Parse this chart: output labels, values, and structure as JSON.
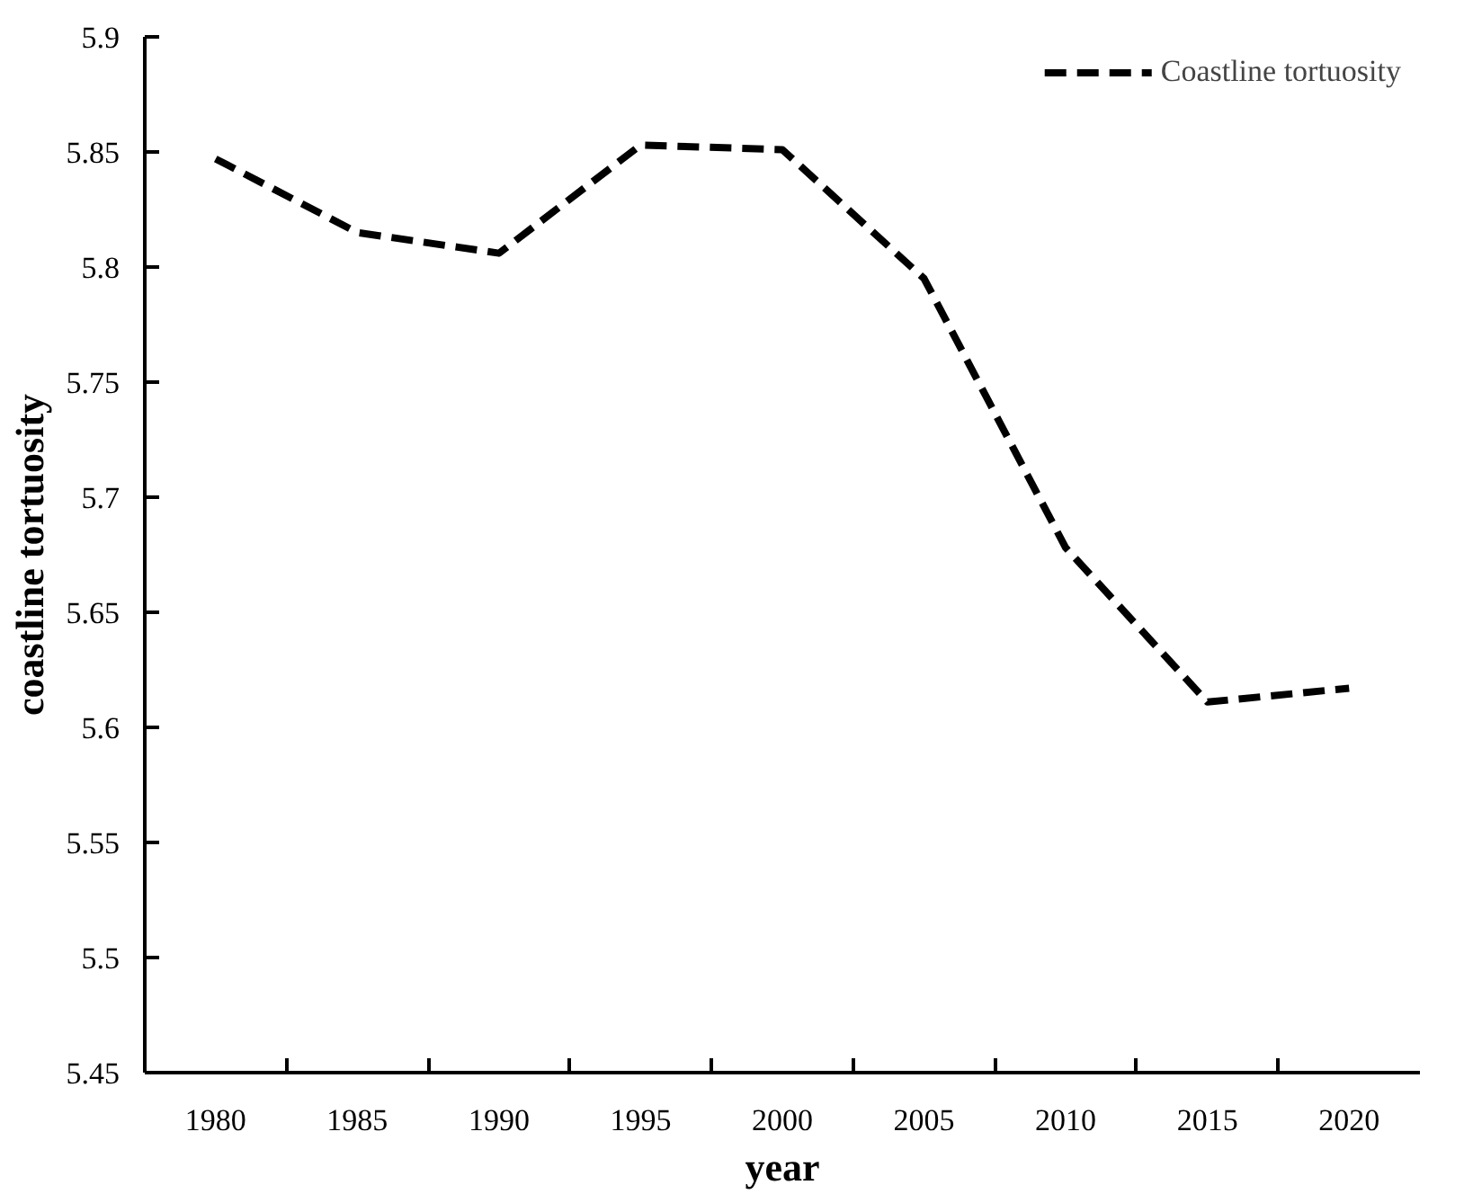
{
  "chart_data": {
    "type": "line",
    "xlabel": "year",
    "ylabel": "coastline tortuosity",
    "categories": [
      "1980",
      "1985",
      "1990",
      "1995",
      "2000",
      "2005",
      "2010",
      "2015",
      "2020"
    ],
    "series": [
      {
        "name": "Coastline tortuosity",
        "color": "#000000",
        "values": [
          5.847,
          5.815,
          5.806,
          5.853,
          5.851,
          5.795,
          5.678,
          5.611,
          5.617
        ]
      }
    ],
    "ylim": [
      5.45,
      5.9
    ],
    "yticks": [
      5.45,
      5.5,
      5.55,
      5.6,
      5.65,
      5.7,
      5.75,
      5.8,
      5.85,
      5.9
    ],
    "line_style": "dashed",
    "legend": "top right",
    "grid": false
  }
}
